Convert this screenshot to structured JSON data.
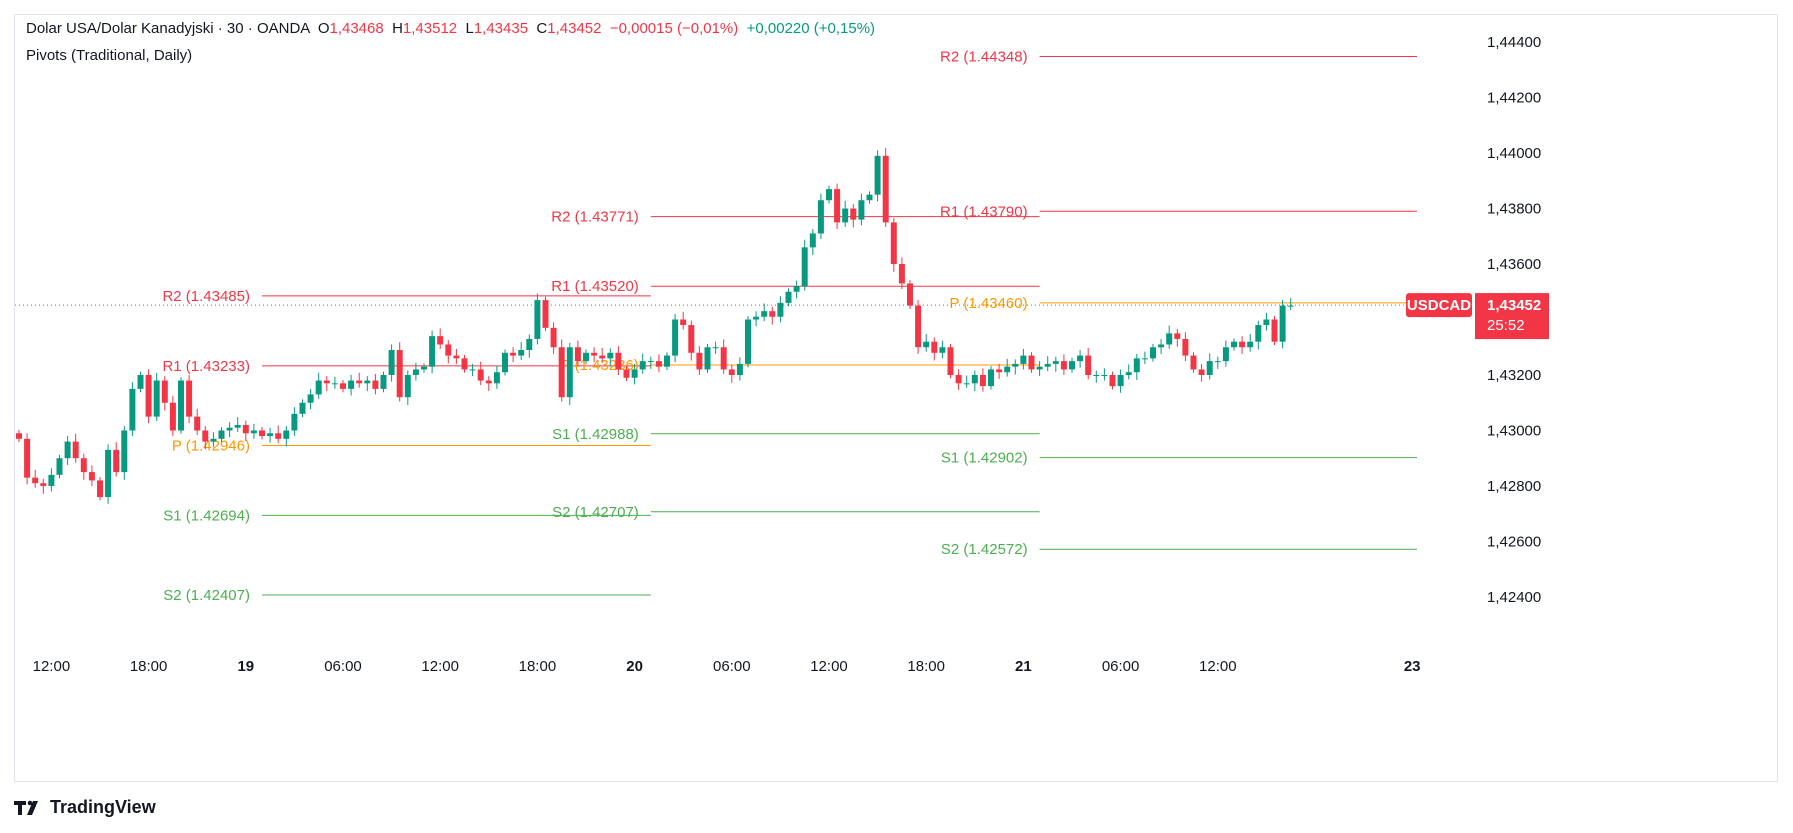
{
  "header": {
    "symbol_name": "Dolar USA/Dolar Kanadyjski",
    "sep1": "·",
    "interval": "30",
    "sep2": "·",
    "exchange": "OANDA",
    "o_label": "O",
    "o_value": "1,43468",
    "h_label": "H",
    "h_value": "1,43512",
    "l_label": "L",
    "l_value": "1,43435",
    "c_label": "C",
    "c_value": "1,43452",
    "change": "−0,00015 (−0,01%)",
    "change2": "+0,00220 (+0,15%)",
    "indicator": "Pivots (Traditional, Daily)"
  },
  "footer": {
    "brand": "TradingView"
  },
  "colors": {
    "up": "#089981",
    "down": "#f23645",
    "resistance": "#f23645",
    "pivot": "#ff9800",
    "support": "#4caf50",
    "axis_text": "#131722",
    "badge_bg": "#f23645"
  },
  "chart_data": {
    "type": "candlestick",
    "symbol": "USDCAD",
    "current_price": "1,43452",
    "countdown": "25:52",
    "ylim": [
      1.4225,
      1.445
    ],
    "y_ticks": [
      "1,44400",
      "1,44200",
      "1,44000",
      "1,43800",
      "1,43600",
      "1,43400",
      "1,43200",
      "1,43000",
      "1,42800",
      "1,42600",
      "1,42400"
    ],
    "y_tick_values": [
      1.444,
      1.442,
      1.44,
      1.438,
      1.436,
      1.434,
      1.432,
      1.43,
      1.428,
      1.426,
      1.424
    ],
    "x_ticks": [
      "12:00",
      "18:00",
      "19",
      "06:00",
      "12:00",
      "18:00",
      "20",
      "06:00",
      "12:00",
      "18:00",
      "21",
      "06:00",
      "12:00",
      "23"
    ],
    "x_tick_index": [
      4,
      16,
      28,
      40,
      52,
      64,
      76,
      88,
      100,
      112,
      124,
      136,
      148,
      172
    ],
    "pivots": [
      {
        "start": 30,
        "end": 78,
        "levels": [
          {
            "name": "R2",
            "value": 1.43485,
            "label": "R2 (1.43485)"
          },
          {
            "name": "R1",
            "value": 1.43233,
            "label": "R1 (1.43233)"
          },
          {
            "name": "P",
            "value": 1.42946,
            "label": "P (1.42946)"
          },
          {
            "name": "S1",
            "value": 1.42694,
            "label": "S1 (1.42694)"
          },
          {
            "name": "S2",
            "value": 1.42407,
            "label": "S2 (1.42407)"
          }
        ]
      },
      {
        "start": 78,
        "end": 126,
        "levels": [
          {
            "name": "R2",
            "value": 1.43771,
            "label": "R2 (1.43771)"
          },
          {
            "name": "R1",
            "value": 1.4352,
            "label": "R1 (1.43520)"
          },
          {
            "name": "P",
            "value": 1.43236,
            "label": "P (1.43236)"
          },
          {
            "name": "S1",
            "value": 1.42988,
            "label": "S1 (1.42988)"
          },
          {
            "name": "S2",
            "value": 1.42707,
            "label": "S2 (1.42707)"
          }
        ]
      },
      {
        "start": 126,
        "end": 174,
        "levels": [
          {
            "name": "R2",
            "value": 1.44348,
            "label": "R2 (1.44348)"
          },
          {
            "name": "R1",
            "value": 1.4379,
            "label": "R1 (1.43790)"
          },
          {
            "name": "P",
            "value": 1.4346,
            "label": "P (1.43460)"
          },
          {
            "name": "S1",
            "value": 1.42902,
            "label": "S1 (1.42902)"
          },
          {
            "name": "S2",
            "value": 1.42572,
            "label": "S2 (1.42572)"
          }
        ]
      }
    ],
    "closes": [
      1.4297,
      1.4283,
      1.4281,
      1.428,
      1.4284,
      1.429,
      1.4296,
      1.429,
      1.4285,
      1.4282,
      1.4276,
      1.4293,
      1.4285,
      1.43,
      1.4315,
      1.432,
      1.4305,
      1.4318,
      1.431,
      1.43,
      1.4318,
      1.4305,
      1.43,
      1.4296,
      1.4297,
      1.43,
      1.4301,
      1.4302,
      1.4299,
      1.43,
      1.4298,
      1.4299,
      1.4297,
      1.43,
      1.4306,
      1.431,
      1.4313,
      1.4318,
      1.4317,
      1.4317,
      1.4315,
      1.4318,
      1.4317,
      1.4318,
      1.4315,
      1.432,
      1.4329,
      1.4312,
      1.432,
      1.4322,
      1.4323,
      1.4334,
      1.4331,
      1.4327,
      1.4326,
      1.4322,
      1.4322,
      1.4318,
      1.4317,
      1.4321,
      1.4328,
      1.4327,
      1.4329,
      1.4333,
      1.4347,
      1.4337,
      1.433,
      1.4312,
      1.433,
      1.4325,
      1.4328,
      1.4327,
      1.4326,
      1.4328,
      1.4322,
      1.4319,
      1.4322,
      1.4325,
      1.4325,
      1.4323,
      1.4327,
      1.434,
      1.4338,
      1.4328,
      1.4322,
      1.433,
      1.433,
      1.4322,
      1.432,
      1.4324,
      1.434,
      1.4341,
      1.4343,
      1.4341,
      1.4346,
      1.435,
      1.4352,
      1.4366,
      1.4371,
      1.4383,
      1.4387,
      1.4375,
      1.438,
      1.4376,
      1.4383,
      1.4385,
      1.4399,
      1.4375,
      1.436,
      1.4353,
      1.4345,
      1.433,
      1.4332,
      1.4328,
      1.433,
      1.432,
      1.4317,
      1.4317,
      1.432,
      1.4316,
      1.4322,
      1.4321,
      1.4323,
      1.4324,
      1.4327,
      1.4322,
      1.4323,
      1.4324,
      1.4325,
      1.4322,
      1.4325,
      1.4327,
      1.432,
      1.432,
      1.432,
      1.4316,
      1.432,
      1.4321,
      1.4326,
      1.4326,
      1.433,
      1.4331,
      1.4335,
      1.4333,
      1.4327,
      1.4322,
      1.432,
      1.4325,
      1.4325,
      1.433,
      1.4332,
      1.433,
      1.4332,
      1.4338,
      1.434,
      1.4332,
      1.4345,
      1.4345
    ]
  }
}
